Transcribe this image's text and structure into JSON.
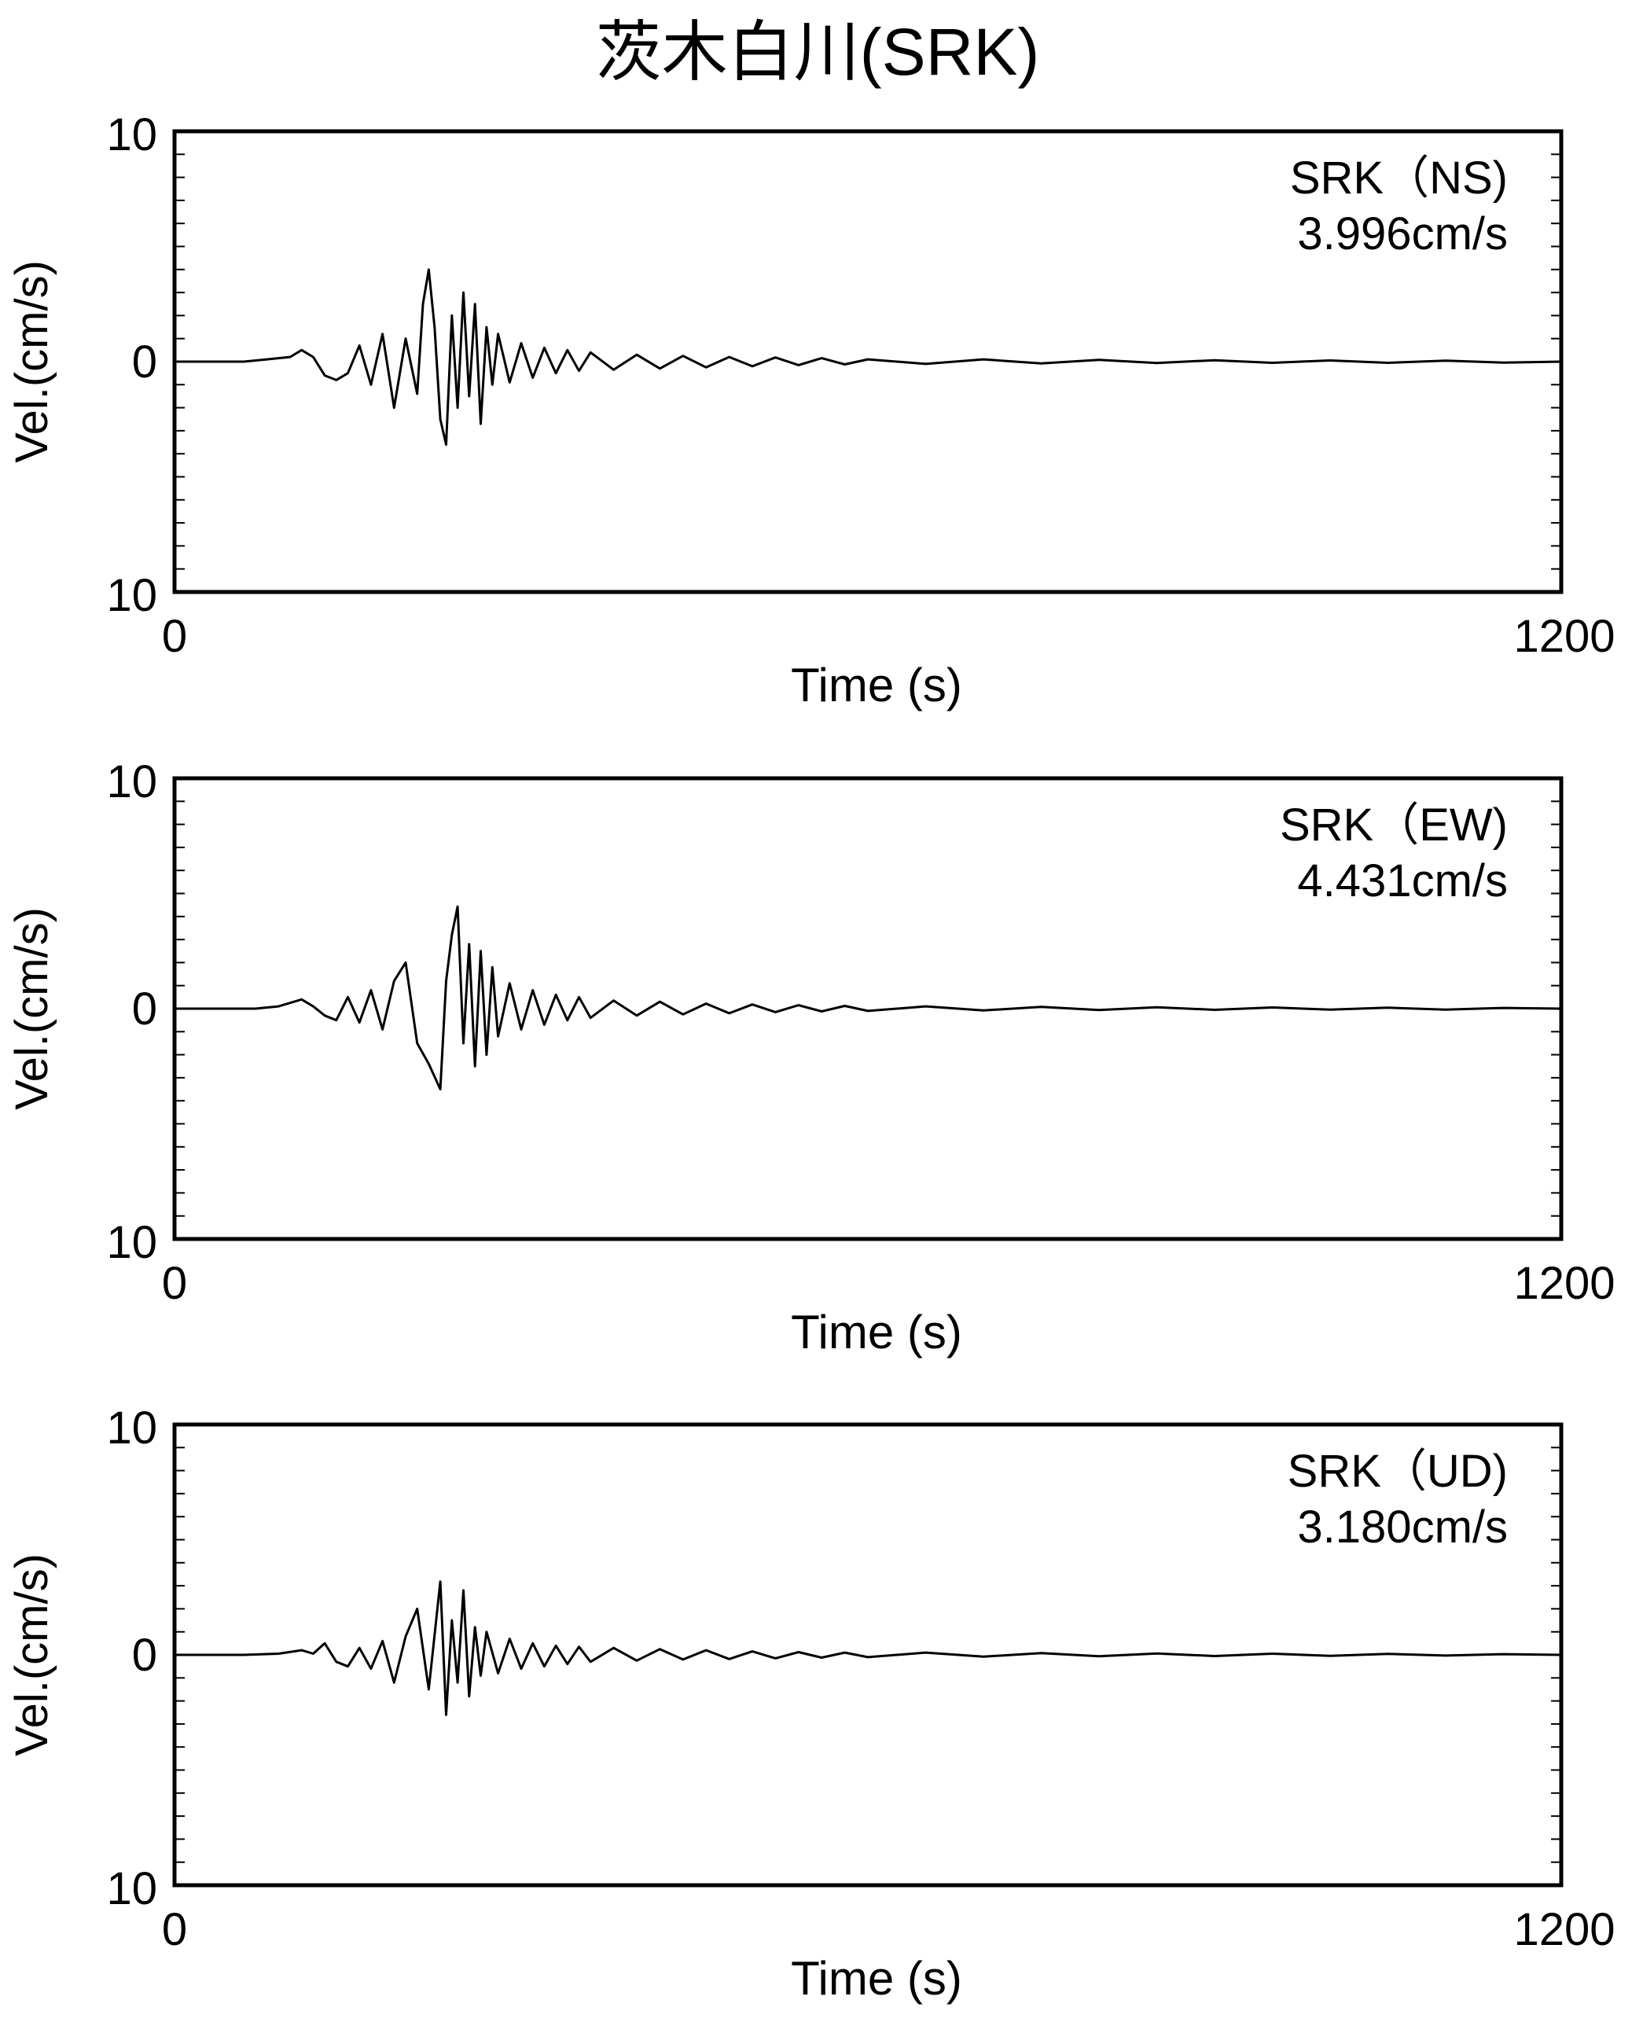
{
  "title": "茨木白川(SRK)",
  "chart_data": [
    {
      "type": "line",
      "xlabel": "Time (s)",
      "ylabel": "Vel.(cm/s)",
      "xlim": [
        0,
        1200
      ],
      "ylim": [
        -10,
        10
      ],
      "x_tick_labels": [
        "0",
        "1200"
      ],
      "y_tick_labels": [
        "10",
        "0",
        "10"
      ],
      "annotation": {
        "line1": "SRK（NS)",
        "line2": "3.996cm/s"
      },
      "series": [
        {
          "x": [
            0,
            60,
            80,
            100,
            110,
            120,
            130,
            140,
            150,
            160,
            170,
            180,
            190,
            200,
            210,
            215,
            220,
            225,
            230,
            235,
            240,
            245,
            250,
            255,
            260,
            265,
            270,
            275,
            280,
            290,
            300,
            310,
            320,
            330,
            340,
            350,
            360,
            380,
            400,
            420,
            440,
            460,
            480,
            500,
            520,
            540,
            560,
            580,
            600,
            650,
            700,
            750,
            800,
            850,
            900,
            950,
            1000,
            1050,
            1100,
            1150,
            1200
          ],
          "y": [
            0,
            0,
            0.1,
            0.2,
            0.5,
            0.2,
            -0.6,
            -0.8,
            -0.5,
            0.7,
            -1,
            1.2,
            -2,
            1,
            -1.4,
            2.5,
            3.996,
            1.5,
            -2.5,
            -3.6,
            2,
            -2,
            3,
            -1.5,
            2.5,
            -2.7,
            1.5,
            -1,
            1.2,
            -0.9,
            0.8,
            -0.7,
            0.6,
            -0.5,
            0.5,
            -0.4,
            0.4,
            -0.35,
            0.3,
            -0.3,
            0.25,
            -0.25,
            0.2,
            -0.2,
            0.18,
            -0.15,
            0.15,
            -0.12,
            0.1,
            -0.1,
            0.1,
            -0.08,
            0.08,
            -0.06,
            0.06,
            -0.05,
            0.05,
            -0.05,
            0.04,
            -0.04,
            0
          ]
        }
      ]
    },
    {
      "type": "line",
      "xlabel": "Time (s)",
      "ylabel": "Vel.(cm/s)",
      "xlim": [
        0,
        1200
      ],
      "ylim": [
        -10,
        10
      ],
      "x_tick_labels": [
        "0",
        "1200"
      ],
      "y_tick_labels": [
        "10",
        "0",
        "10"
      ],
      "annotation": {
        "line1": "SRK（EW)",
        "line2": "4.431cm/s"
      },
      "series": [
        {
          "x": [
            0,
            70,
            90,
            110,
            120,
            130,
            140,
            150,
            160,
            170,
            180,
            190,
            200,
            210,
            220,
            230,
            235,
            240,
            245,
            250,
            255,
            260,
            265,
            270,
            275,
            280,
            290,
            300,
            310,
            320,
            330,
            340,
            350,
            360,
            380,
            400,
            420,
            440,
            460,
            480,
            500,
            520,
            540,
            560,
            580,
            600,
            650,
            700,
            750,
            800,
            850,
            900,
            950,
            1000,
            1050,
            1100,
            1150,
            1200
          ],
          "y": [
            0,
            0,
            0.1,
            0.4,
            0.1,
            -0.3,
            -0.5,
            0.5,
            -0.6,
            0.8,
            -0.9,
            1.2,
            2,
            -1.5,
            -2.4,
            -3.5,
            1.2,
            3.2,
            4.431,
            -1.5,
            2.8,
            -2.5,
            2.5,
            -2,
            1.8,
            -1.2,
            1.1,
            -0.9,
            0.8,
            -0.7,
            0.6,
            -0.5,
            0.5,
            -0.4,
            0.35,
            -0.3,
            0.3,
            -0.25,
            0.22,
            -0.2,
            0.18,
            -0.15,
            0.15,
            -0.12,
            0.12,
            -0.1,
            0.1,
            -0.08,
            0.08,
            -0.06,
            0.06,
            -0.05,
            0.05,
            -0.04,
            0.04,
            -0.04,
            0.03,
            0
          ]
        }
      ]
    },
    {
      "type": "line",
      "xlabel": "Time (s)",
      "ylabel": "Vel.(cm/s)",
      "xlim": [
        0,
        1200
      ],
      "ylim": [
        -10,
        10
      ],
      "x_tick_labels": [
        "0",
        "1200"
      ],
      "y_tick_labels": [
        "10",
        "0",
        "10"
      ],
      "annotation": {
        "line1": "SRK（UD)",
        "line2": "3.180cm/s"
      },
      "series": [
        {
          "x": [
            0,
            60,
            90,
            110,
            120,
            130,
            140,
            150,
            160,
            170,
            180,
            190,
            200,
            210,
            220,
            230,
            235,
            240,
            245,
            250,
            255,
            260,
            265,
            270,
            280,
            290,
            300,
            310,
            320,
            330,
            340,
            350,
            360,
            380,
            400,
            420,
            440,
            460,
            480,
            500,
            520,
            540,
            560,
            580,
            600,
            650,
            700,
            750,
            800,
            850,
            900,
            950,
            1000,
            1050,
            1100,
            1150,
            1200
          ],
          "y": [
            0,
            0,
            0.05,
            0.2,
            0.05,
            0.5,
            -0.3,
            -0.5,
            0.3,
            -0.6,
            0.6,
            -1.2,
            0.8,
            2,
            -1.5,
            3.18,
            -2.6,
            1.5,
            -1.2,
            2.8,
            -1.8,
            1.2,
            -0.9,
            1,
            -0.8,
            0.7,
            -0.6,
            0.5,
            -0.5,
            0.4,
            -0.4,
            0.35,
            -0.3,
            0.3,
            -0.25,
            0.25,
            -0.2,
            0.2,
            -0.18,
            0.15,
            -0.15,
            0.12,
            -0.12,
            0.1,
            -0.1,
            0.1,
            -0.08,
            0.08,
            -0.06,
            0.06,
            -0.05,
            0.05,
            -0.04,
            0.04,
            -0.03,
            0.03,
            0
          ]
        }
      ]
    }
  ]
}
